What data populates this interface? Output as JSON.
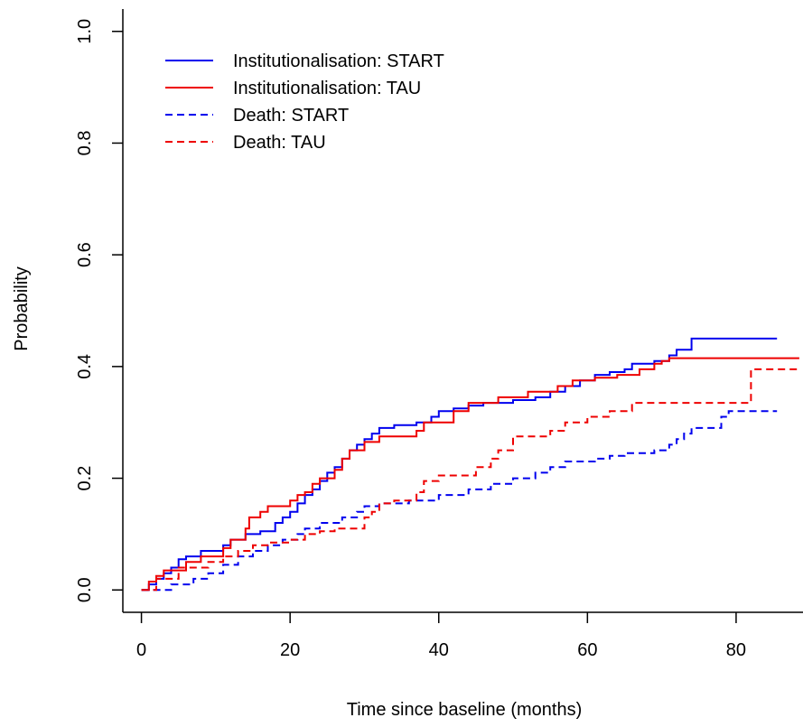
{
  "chart_data": {
    "type": "line",
    "title": "",
    "xlabel": "Time since baseline (months)",
    "ylabel": "Probability",
    "xlim": [
      -2.5,
      89
    ],
    "ylim": [
      -0.04,
      1.04
    ],
    "xticks": [
      0,
      20,
      40,
      60,
      80
    ],
    "yticks": [
      0.0,
      0.2,
      0.4,
      0.6,
      0.8,
      1.0
    ],
    "ytick_labels": [
      "0.0",
      "0.2",
      "0.4",
      "0.6",
      "0.8",
      "1.0"
    ],
    "xtick_labels": [
      "0",
      "20",
      "40",
      "60",
      "80"
    ],
    "grid": false,
    "legend_position": "top-left",
    "step": true,
    "series": [
      {
        "name": "Institutionalisation: START",
        "color": "#0000ee",
        "dash": "solid",
        "points": [
          [
            0,
            0
          ],
          [
            1,
            0.01
          ],
          [
            2,
            0.02
          ],
          [
            3,
            0.03
          ],
          [
            4,
            0.04
          ],
          [
            5,
            0.055
          ],
          [
            6,
            0.06
          ],
          [
            8,
            0.07
          ],
          [
            11,
            0.08
          ],
          [
            12,
            0.09
          ],
          [
            14,
            0.1
          ],
          [
            16,
            0.105
          ],
          [
            18,
            0.12
          ],
          [
            19,
            0.13
          ],
          [
            20,
            0.14
          ],
          [
            21,
            0.155
          ],
          [
            22,
            0.17
          ],
          [
            23,
            0.18
          ],
          [
            24,
            0.195
          ],
          [
            25,
            0.21
          ],
          [
            26,
            0.22
          ],
          [
            27,
            0.235
          ],
          [
            28,
            0.25
          ],
          [
            29,
            0.26
          ],
          [
            30,
            0.27
          ],
          [
            31,
            0.28
          ],
          [
            32,
            0.29
          ],
          [
            34,
            0.295
          ],
          [
            37,
            0.3
          ],
          [
            39,
            0.31
          ],
          [
            40,
            0.32
          ],
          [
            42,
            0.325
          ],
          [
            44,
            0.33
          ],
          [
            46,
            0.335
          ],
          [
            50,
            0.34
          ],
          [
            53,
            0.345
          ],
          [
            55,
            0.355
          ],
          [
            57,
            0.365
          ],
          [
            59,
            0.375
          ],
          [
            61,
            0.385
          ],
          [
            63,
            0.39
          ],
          [
            65,
            0.395
          ],
          [
            66,
            0.405
          ],
          [
            69,
            0.41
          ],
          [
            71,
            0.42
          ],
          [
            72,
            0.43
          ],
          [
            74,
            0.45
          ],
          [
            85.5,
            0.45
          ]
        ]
      },
      {
        "name": "Institutionalisation: TAU",
        "color": "#ee0000",
        "dash": "solid",
        "points": [
          [
            0,
            0
          ],
          [
            1,
            0.015
          ],
          [
            2,
            0.025
          ],
          [
            3,
            0.035
          ],
          [
            6,
            0.05
          ],
          [
            8,
            0.06
          ],
          [
            11,
            0.075
          ],
          [
            12,
            0.09
          ],
          [
            14,
            0.11
          ],
          [
            14.5,
            0.13
          ],
          [
            16,
            0.14
          ],
          [
            17,
            0.15
          ],
          [
            20,
            0.16
          ],
          [
            21,
            0.17
          ],
          [
            22,
            0.175
          ],
          [
            23,
            0.19
          ],
          [
            24,
            0.2
          ],
          [
            26,
            0.215
          ],
          [
            27,
            0.235
          ],
          [
            28,
            0.25
          ],
          [
            30,
            0.265
          ],
          [
            32,
            0.275
          ],
          [
            37,
            0.285
          ],
          [
            38,
            0.3
          ],
          [
            42,
            0.32
          ],
          [
            44,
            0.335
          ],
          [
            48,
            0.345
          ],
          [
            52,
            0.355
          ],
          [
            56,
            0.365
          ],
          [
            58,
            0.375
          ],
          [
            61,
            0.38
          ],
          [
            64,
            0.385
          ],
          [
            67,
            0.395
          ],
          [
            69,
            0.405
          ],
          [
            70,
            0.41
          ],
          [
            71,
            0.415
          ],
          [
            88.5,
            0.415
          ]
        ]
      },
      {
        "name": "Death: START",
        "color": "#0000ee",
        "dash": "dashed",
        "points": [
          [
            0,
            0
          ],
          [
            4,
            0.01
          ],
          [
            7,
            0.02
          ],
          [
            9,
            0.03
          ],
          [
            11,
            0.045
          ],
          [
            13,
            0.06
          ],
          [
            15,
            0.07
          ],
          [
            17,
            0.08
          ],
          [
            19,
            0.09
          ],
          [
            21,
            0.1
          ],
          [
            22,
            0.11
          ],
          [
            24,
            0.12
          ],
          [
            27,
            0.13
          ],
          [
            29,
            0.14
          ],
          [
            30,
            0.15
          ],
          [
            32,
            0.155
          ],
          [
            36,
            0.16
          ],
          [
            40,
            0.17
          ],
          [
            44,
            0.18
          ],
          [
            47,
            0.19
          ],
          [
            50,
            0.2
          ],
          [
            53,
            0.21
          ],
          [
            55,
            0.22
          ],
          [
            57,
            0.23
          ],
          [
            61,
            0.235
          ],
          [
            63,
            0.24
          ],
          [
            65,
            0.245
          ],
          [
            69,
            0.25
          ],
          [
            71,
            0.26
          ],
          [
            72,
            0.27
          ],
          [
            73,
            0.28
          ],
          [
            74,
            0.29
          ],
          [
            78,
            0.31
          ],
          [
            79,
            0.32
          ],
          [
            85.5,
            0.32
          ]
        ]
      },
      {
        "name": "Death: TAU",
        "color": "#ee0000",
        "dash": "dashed",
        "points": [
          [
            0,
            0
          ],
          [
            2,
            0.02
          ],
          [
            5,
            0.04
          ],
          [
            9,
            0.05
          ],
          [
            11,
            0.06
          ],
          [
            13,
            0.07
          ],
          [
            15,
            0.08
          ],
          [
            17,
            0.085
          ],
          [
            20,
            0.09
          ],
          [
            22,
            0.1
          ],
          [
            24,
            0.105
          ],
          [
            26,
            0.11
          ],
          [
            30,
            0.13
          ],
          [
            31,
            0.14
          ],
          [
            32,
            0.155
          ],
          [
            34,
            0.16
          ],
          [
            37,
            0.175
          ],
          [
            38,
            0.195
          ],
          [
            40,
            0.205
          ],
          [
            45,
            0.22
          ],
          [
            47,
            0.235
          ],
          [
            48,
            0.25
          ],
          [
            50,
            0.275
          ],
          [
            55,
            0.285
          ],
          [
            57,
            0.3
          ],
          [
            60,
            0.31
          ],
          [
            63,
            0.32
          ],
          [
            66,
            0.335
          ],
          [
            72,
            0.335
          ],
          [
            82,
            0.395
          ],
          [
            88.5,
            0.395
          ]
        ]
      }
    ]
  }
}
